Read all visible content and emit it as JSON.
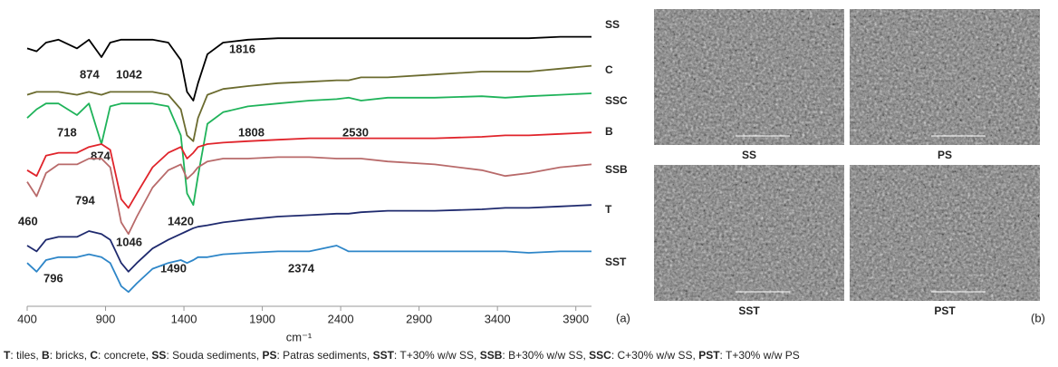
{
  "chart_data": {
    "type": "line",
    "x_label": "cm⁻¹",
    "panel_label": "(a)",
    "x": [
      400,
      460,
      520,
      600,
      718,
      794,
      874,
      930,
      1000,
      1046,
      1100,
      1200,
      1300,
      1380,
      1420,
      1460,
      1490,
      1550,
      1650,
      1808,
      2000,
      2200,
      2374,
      2450,
      2530,
      2700,
      3000,
      3300,
      3450,
      3600,
      3800,
      4000
    ],
    "xlim": [
      400,
      4000
    ],
    "xticks": [
      400,
      900,
      1400,
      1900,
      2400,
      2900,
      3400,
      3900
    ],
    "ylim": [
      0,
      100
    ],
    "series": [
      {
        "name": "SS",
        "color": "#000000",
        "values": [
          88,
          87,
          90,
          91,
          88,
          91,
          85,
          90,
          91,
          91,
          91,
          91,
          90,
          84,
          73,
          70,
          76,
          86,
          90,
          91,
          91.5,
          91.5,
          91.5,
          91.5,
          91.5,
          91.5,
          91.5,
          91.5,
          91.5,
          91.5,
          92,
          92
        ]
      },
      {
        "name": "C",
        "color": "#6b6b2f",
        "values": [
          72,
          73,
          73,
          73,
          72,
          73,
          72,
          73,
          73,
          73,
          73,
          73,
          72,
          67,
          58,
          56,
          64,
          72,
          74,
          75,
          76,
          76.5,
          77,
          77,
          78,
          78,
          79,
          80,
          80,
          80,
          81,
          82
        ]
      },
      {
        "name": "SSC",
        "color": "#1fb35a",
        "values": [
          64,
          67,
          69,
          69,
          65,
          69,
          55,
          68,
          69,
          69,
          69,
          69,
          68,
          58,
          38,
          34,
          44,
          62,
          66,
          68,
          69,
          70,
          70.5,
          71,
          70,
          71,
          71,
          71.5,
          71,
          71.5,
          72,
          72.5
        ]
      },
      {
        "name": "B",
        "color": "#e0242b",
        "values": [
          46,
          44,
          51,
          52,
          52,
          54,
          55,
          53,
          36,
          33,
          38,
          47,
          52,
          54,
          50,
          52,
          54,
          55,
          55.5,
          56,
          56.5,
          57,
          57,
          57,
          57,
          57,
          57,
          57.5,
          58,
          58,
          58.5,
          59
        ]
      },
      {
        "name": "SSB",
        "color": "#b86a6a",
        "values": [
          42,
          37,
          45,
          48,
          48,
          50,
          50,
          47,
          28,
          24,
          30,
          40,
          46,
          48,
          43,
          45,
          47,
          49,
          50,
          50,
          50.5,
          50.5,
          50,
          50,
          50,
          49,
          48,
          46,
          44,
          45,
          47,
          48
        ]
      },
      {
        "name": "T",
        "color": "#1f2a6e",
        "values": [
          20,
          18,
          22,
          23,
          23,
          25,
          24,
          22,
          14,
          11,
          14,
          19,
          22,
          24,
          25,
          26,
          26.5,
          27,
          28,
          29,
          30,
          30.5,
          31,
          31,
          31.5,
          32,
          32,
          32.5,
          33,
          33,
          33.5,
          34
        ]
      },
      {
        "name": "SST",
        "color": "#2e86c8",
        "values": [
          14,
          11,
          15,
          16,
          16,
          17,
          16,
          14,
          6,
          4,
          7,
          12,
          14,
          15,
          14,
          15,
          16,
          16,
          17,
          17.5,
          18,
          18,
          20,
          18,
          18,
          18,
          18,
          18,
          18,
          17.5,
          18,
          18
        ]
      }
    ],
    "annotations": [
      "1816",
      "874",
      "1042",
      "718",
      "874",
      "1808",
      "2530",
      "794",
      "460",
      "1420",
      "1046",
      "1490",
      "2374",
      "796"
    ]
  },
  "images": {
    "panel_label": "(b)",
    "labels": [
      "SS",
      "PS",
      "SST",
      "PST"
    ]
  },
  "caption": [
    [
      "T",
      ": tiles, "
    ],
    [
      "B",
      ": bricks, "
    ],
    [
      "C",
      ": concrete, "
    ],
    [
      "SS",
      ": Souda sediments, "
    ],
    [
      "PS",
      ": Patras sediments, "
    ],
    [
      "SST",
      ": T+30% w/w SS, "
    ],
    [
      "SSB",
      ": B+30% w/w SS, "
    ],
    [
      "SSC",
      ": C+30% w/w SS, "
    ],
    [
      "PST",
      ": T+30% w/w PS"
    ]
  ]
}
